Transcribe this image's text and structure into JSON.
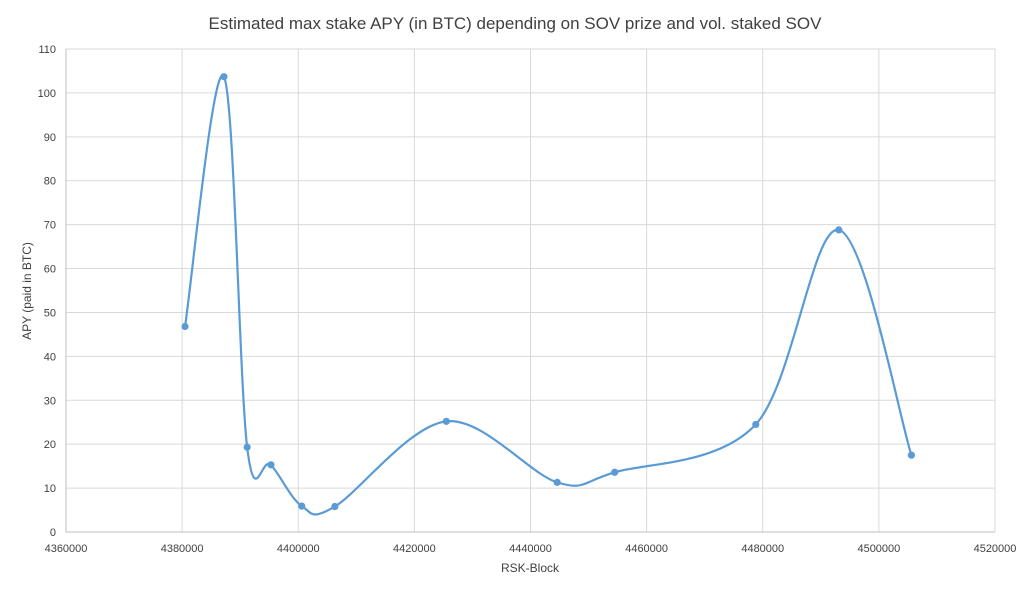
{
  "chart_data": {
    "type": "scatter",
    "title": "Estimated max stake APY (in BTC) depending on SOV prize and vol. staked SOV",
    "xlabel": "RSK-Block",
    "ylabel": "APY (paid in BTC)",
    "xlim": [
      4360000,
      4520000
    ],
    "ylim": [
      0,
      110
    ],
    "xticks": [
      4360000,
      4380000,
      4400000,
      4420000,
      4440000,
      4460000,
      4480000,
      4500000,
      4520000
    ],
    "yticks": [
      0,
      10,
      20,
      30,
      40,
      50,
      60,
      70,
      80,
      90,
      100,
      110
    ],
    "grid": true,
    "smooth": true,
    "color": "#5b9bd5",
    "series": [
      {
        "points": [
          [
            4380500,
            46.8
          ],
          [
            4387200,
            103.7
          ],
          [
            4391200,
            19.3
          ],
          [
            4395300,
            15.3
          ],
          [
            4400600,
            5.9
          ],
          [
            4406300,
            5.8
          ],
          [
            4425500,
            25.2
          ],
          [
            4444600,
            11.3
          ],
          [
            4454500,
            13.6
          ],
          [
            4478800,
            24.5
          ],
          [
            4493100,
            68.8
          ],
          [
            4505600,
            17.5
          ]
        ]
      }
    ]
  }
}
